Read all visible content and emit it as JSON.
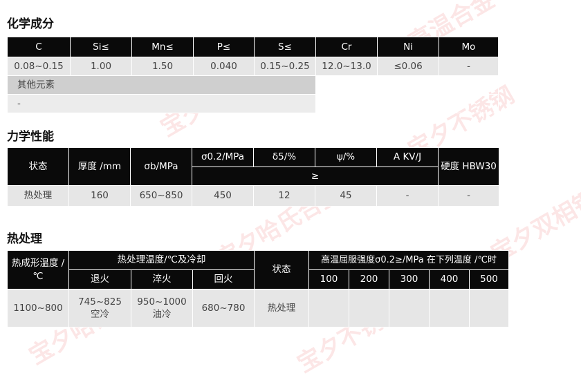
{
  "sections": {
    "chem": "化学成分",
    "mech": "力学性能",
    "heat": "热处理"
  },
  "chem": {
    "headers": [
      "C",
      "Si≤",
      "Mn≤",
      "P≤",
      "S≤",
      "Cr",
      "Ni",
      "Mo"
    ],
    "values": [
      "0.08~0.15",
      "1.00",
      "1.50",
      "0.040",
      "0.15~0.25",
      "12.0~13.0",
      "≤0.06",
      "-"
    ],
    "other_label": "其他元素",
    "other_value": "-"
  },
  "mech": {
    "headers": [
      "状态",
      "厚度 /mm",
      "σb/MPa",
      "σ0.2/MPa",
      "δ5/%",
      "ψ/%",
      "A KV/J",
      "硬度 HBW30"
    ],
    "ge": "≥",
    "values": [
      "热处理",
      "160",
      "650~850",
      "450",
      "12",
      "45",
      "-",
      "-"
    ]
  },
  "heat": {
    "h_form": "热成形温度 /℃",
    "h_treat": "热处理温度/℃及冷却",
    "h_state": "状态",
    "h_high": "高温屈服强度σ0.2≥/MPa 在下列温度 /℃时",
    "sub": [
      "退火",
      "淬火",
      "回火"
    ],
    "temps": [
      "100",
      "200",
      "300",
      "400",
      "500"
    ],
    "values": {
      "form": "1100~800",
      "anneal": "745~825",
      "anneal_cool": "空冷",
      "quench": "950~1000",
      "quench_cool": "油冷",
      "temper": "680~780",
      "state": "热处理"
    }
  },
  "watermark": "宝夕哈氏合金 宝夕高温合金 宝夕不锈钢 宝夕双相钢 宝夕镍基合金"
}
